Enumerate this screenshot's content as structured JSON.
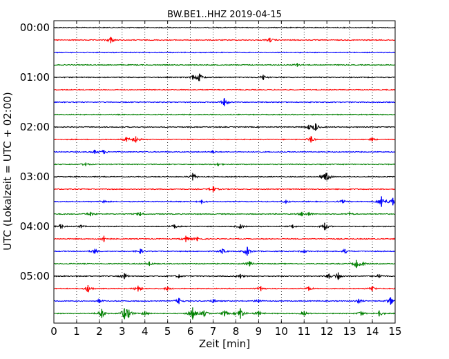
{
  "chart_data": {
    "type": "line",
    "title": "BW.BE1..HHZ 2019-04-15",
    "xlabel": "Zeit  [min]",
    "ylabel": "UTC (Lokalzeit = UTC + 02:00)",
    "xlim": [
      0,
      15
    ],
    "x_ticks": [
      0,
      1,
      2,
      3,
      4,
      5,
      6,
      7,
      8,
      9,
      10,
      11,
      12,
      13,
      14,
      15
    ],
    "x_tick_labels": [
      "0",
      "1",
      "2",
      "3",
      "4",
      "5",
      "6",
      "7",
      "8",
      "9",
      "10",
      "11",
      "12",
      "13",
      "14",
      "15"
    ],
    "y_tick_labels": [
      "00:00",
      "01:00",
      "02:00",
      "03:00",
      "04:00",
      "05:00"
    ],
    "grid": "vertical dotted at every minute",
    "legend": "none",
    "series_colors": [
      "#000000",
      "#ff0000",
      "#0000ff",
      "#008000"
    ],
    "traces": [
      {
        "start": "00:00",
        "color": "#000000",
        "events": []
      },
      {
        "start": "00:15",
        "color": "#ff0000",
        "events": [
          {
            "x": 2.5,
            "amp": 1.6
          },
          {
            "x": 9.5,
            "amp": 1.0
          }
        ]
      },
      {
        "start": "00:30",
        "color": "#0000ff",
        "events": []
      },
      {
        "start": "00:45",
        "color": "#008000",
        "events": [
          {
            "x": 10.7,
            "amp": 0.8
          }
        ]
      },
      {
        "start": "01:00",
        "color": "#000000",
        "events": [
          {
            "x": 6.1,
            "amp": 1.0
          },
          {
            "x": 6.4,
            "amp": 2.0
          },
          {
            "x": 9.2,
            "amp": 1.2
          }
        ]
      },
      {
        "start": "01:15",
        "color": "#ff0000",
        "events": []
      },
      {
        "start": "01:30",
        "color": "#0000ff",
        "events": [
          {
            "x": 7.5,
            "amp": 2.2
          }
        ]
      },
      {
        "start": "01:45",
        "color": "#008000",
        "events": []
      },
      {
        "start": "02:00",
        "color": "#000000",
        "events": [
          {
            "x": 11.2,
            "amp": 1.0
          },
          {
            "x": 11.5,
            "amp": 2.0
          }
        ]
      },
      {
        "start": "02:15",
        "color": "#ff0000",
        "events": [
          {
            "x": 3.2,
            "amp": 1.0
          },
          {
            "x": 3.6,
            "amp": 1.6
          },
          {
            "x": 11.3,
            "amp": 1.6
          },
          {
            "x": 14.0,
            "amp": 0.6
          }
        ]
      },
      {
        "start": "02:30",
        "color": "#0000ff",
        "events": [
          {
            "x": 1.8,
            "amp": 0.9
          },
          {
            "x": 2.2,
            "amp": 0.9
          },
          {
            "x": 7.0,
            "amp": 0.5
          }
        ]
      },
      {
        "start": "02:45",
        "color": "#008000",
        "events": [
          {
            "x": 1.4,
            "amp": 0.7
          },
          {
            "x": 7.2,
            "amp": 0.6
          }
        ]
      },
      {
        "start": "03:00",
        "color": "#000000",
        "events": [
          {
            "x": 6.1,
            "amp": 2.0
          },
          {
            "x": 11.9,
            "amp": 1.0
          },
          {
            "x": 12.0,
            "amp": 2.0
          }
        ]
      },
      {
        "start": "03:15",
        "color": "#ff0000",
        "events": [
          {
            "x": 7.0,
            "amp": 1.6
          }
        ]
      },
      {
        "start": "03:30",
        "color": "#0000ff",
        "events": [
          {
            "x": 2.2,
            "amp": 0.6
          },
          {
            "x": 6.5,
            "amp": 0.8
          },
          {
            "x": 10.2,
            "amp": 0.7
          },
          {
            "x": 12.7,
            "amp": 0.7
          },
          {
            "x": 14.4,
            "amp": 3.0
          },
          {
            "x": 14.9,
            "amp": 2.0
          }
        ]
      },
      {
        "start": "03:45",
        "color": "#008000",
        "events": [
          {
            "x": 1.6,
            "amp": 1.0
          },
          {
            "x": 3.8,
            "amp": 0.9
          },
          {
            "x": 10.9,
            "amp": 1.0
          },
          {
            "x": 11.2,
            "amp": 0.7
          },
          {
            "x": 13.0,
            "amp": 0.6
          }
        ]
      },
      {
        "start": "04:00",
        "color": "#000000",
        "events": [
          {
            "x": 0.3,
            "amp": 1.0
          },
          {
            "x": 1.2,
            "amp": 0.6
          },
          {
            "x": 5.3,
            "amp": 0.8
          },
          {
            "x": 8.2,
            "amp": 1.0
          },
          {
            "x": 10.5,
            "amp": 0.7
          },
          {
            "x": 11.9,
            "amp": 2.0
          }
        ]
      },
      {
        "start": "04:15",
        "color": "#ff0000",
        "events": [
          {
            "x": 2.2,
            "amp": 1.6
          },
          {
            "x": 5.8,
            "amp": 1.6
          },
          {
            "x": 6.3,
            "amp": 1.0
          }
        ]
      },
      {
        "start": "04:30",
        "color": "#0000ff",
        "events": [
          {
            "x": 1.8,
            "amp": 1.2
          },
          {
            "x": 3.8,
            "amp": 1.2
          },
          {
            "x": 7.4,
            "amp": 1.2
          },
          {
            "x": 8.5,
            "amp": 2.5
          },
          {
            "x": 11.0,
            "amp": 0.7
          },
          {
            "x": 12.8,
            "amp": 1.0
          }
        ]
      },
      {
        "start": "04:45",
        "color": "#008000",
        "events": [
          {
            "x": 4.2,
            "amp": 1.0
          },
          {
            "x": 8.6,
            "amp": 1.2
          },
          {
            "x": 13.3,
            "amp": 2.0
          },
          {
            "x": 13.6,
            "amp": 0.8
          }
        ]
      },
      {
        "start": "05:00",
        "color": "#000000",
        "events": [
          {
            "x": 3.1,
            "amp": 1.5
          },
          {
            "x": 5.5,
            "amp": 0.7
          },
          {
            "x": 8.2,
            "amp": 1.0
          },
          {
            "x": 12.1,
            "amp": 1.2
          },
          {
            "x": 12.5,
            "amp": 2.0
          },
          {
            "x": 14.3,
            "amp": 0.8
          }
        ]
      },
      {
        "start": "05:15",
        "color": "#ff0000",
        "events": [
          {
            "x": 1.5,
            "amp": 1.8
          },
          {
            "x": 3.7,
            "amp": 1.5
          },
          {
            "x": 5.0,
            "amp": 0.8
          },
          {
            "x": 9.1,
            "amp": 1.2
          },
          {
            "x": 11.2,
            "amp": 1.0
          },
          {
            "x": 14.0,
            "amp": 1.2
          }
        ]
      },
      {
        "start": "05:30",
        "color": "#0000ff",
        "events": [
          {
            "x": 2.0,
            "amp": 0.8
          },
          {
            "x": 5.5,
            "amp": 1.5
          },
          {
            "x": 7.0,
            "amp": 0.8
          },
          {
            "x": 9.0,
            "amp": 0.8
          },
          {
            "x": 13.4,
            "amp": 1.0
          },
          {
            "x": 14.8,
            "amp": 2.0
          }
        ]
      },
      {
        "start": "05:45",
        "color": "#008000",
        "events": [
          {
            "x": 2.1,
            "amp": 2.5
          },
          {
            "x": 3.1,
            "amp": 3.0
          },
          {
            "x": 3.3,
            "amp": 2.0
          },
          {
            "x": 4.0,
            "amp": 1.0
          },
          {
            "x": 6.1,
            "amp": 3.5
          },
          {
            "x": 6.6,
            "amp": 1.5
          },
          {
            "x": 7.5,
            "amp": 1.5
          },
          {
            "x": 8.2,
            "amp": 3.0
          },
          {
            "x": 9.0,
            "amp": 1.2
          },
          {
            "x": 11.0,
            "amp": 1.0
          },
          {
            "x": 13.5,
            "amp": 1.0
          },
          {
            "x": 14.3,
            "amp": 1.5
          }
        ]
      }
    ]
  }
}
